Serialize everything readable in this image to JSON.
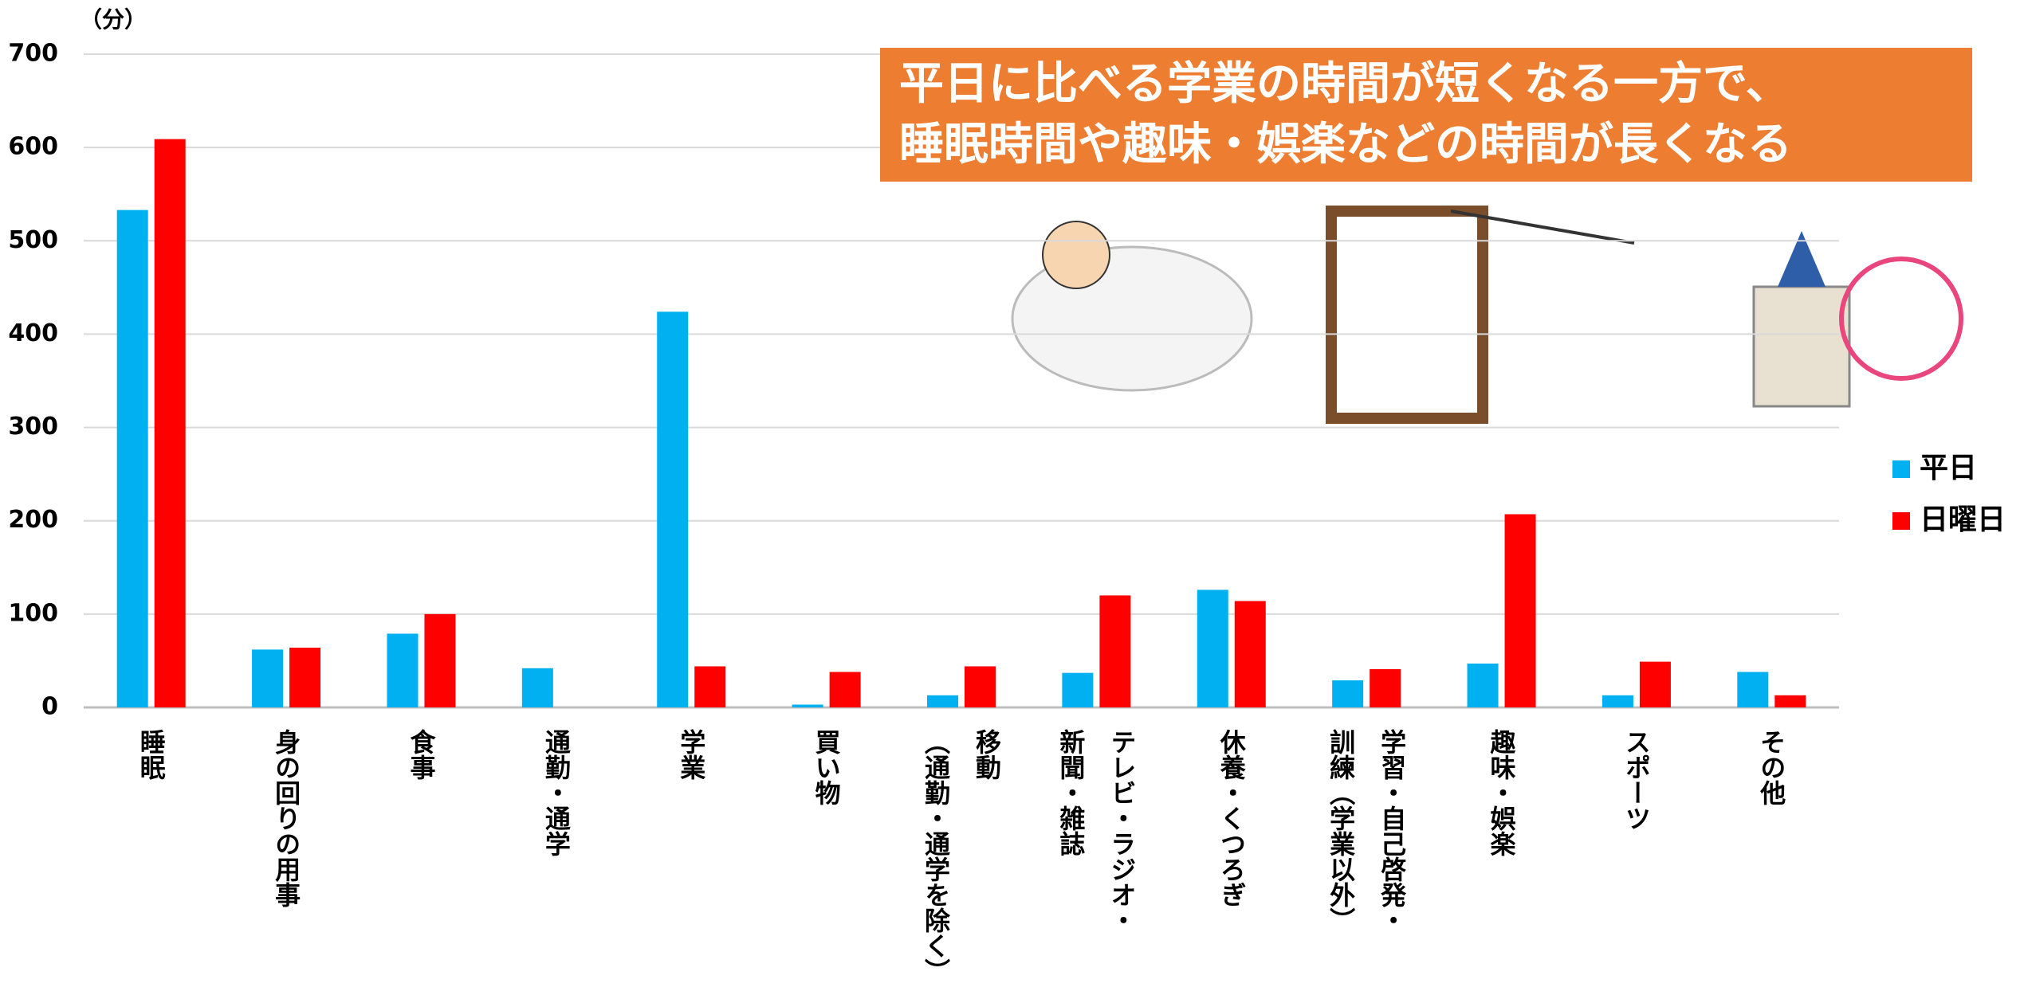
{
  "chart_data": {
    "type": "bar",
    "y_unit": "（分）",
    "annotation": "平日に比べる学業の時間が短くなる一方で、\n睡眠時間や趣味・娯楽などの時間が長くなる",
    "categories": [
      "睡眠",
      "身の回りの用事",
      "食事",
      "通勤・通学",
      "学業",
      "買い物",
      "移動\n（通勤・通学を除く）",
      "テレビ・ラジオ・\n新聞・雑誌",
      "休養・くつろぎ",
      "学習・自己啓発・\n訓練（学業以外）",
      "趣味・娯楽",
      "スポーツ",
      "その他"
    ],
    "series": [
      {
        "name": "平日",
        "color": "#00b0f0",
        "values": [
          533,
          62,
          79,
          42,
          424,
          3,
          13,
          37,
          126,
          29,
          47,
          13,
          38
        ]
      },
      {
        "name": "日曜日",
        "color": "#ff0000",
        "values": [
          609,
          64,
          100,
          0,
          44,
          38,
          44,
          120,
          114,
          41,
          207,
          49,
          13
        ]
      }
    ],
    "ylim": [
      0,
      700
    ],
    "yticks": [
      0,
      100,
      200,
      300,
      400,
      500,
      600,
      700
    ],
    "grid": true
  }
}
